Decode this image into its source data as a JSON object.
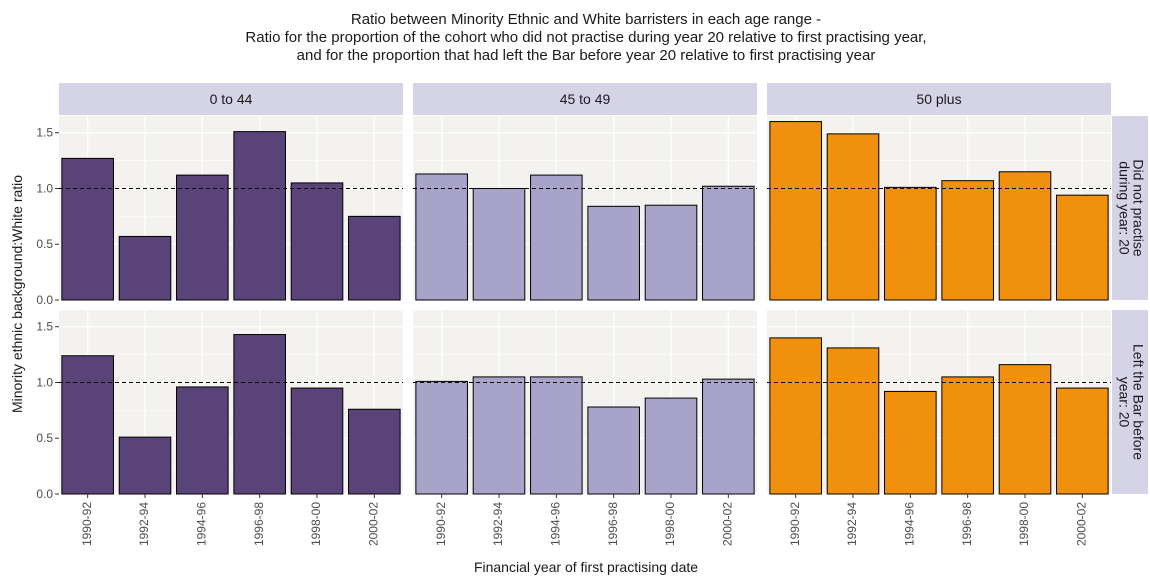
{
  "chart_data": {
    "type": "bar",
    "title_lines": [
      "Ratio between Minority Ethnic and White barristers in each age range -",
      "Ratio for the proportion of the cohort who did not practise during year 20 relative to first practising year,",
      "and for the proportion that had left the Bar before year 20 relative to first practising year"
    ],
    "xlabel": "Financial year of first practising date",
    "ylabel": "Minority ethnic background:White ratio",
    "categories": [
      "1990-92",
      "1992-94",
      "1994-96",
      "1996-98",
      "1998-00",
      "2000-02"
    ],
    "y_ticks": [
      "0.0",
      "0.5",
      "1.0",
      "1.5"
    ],
    "ylim": [
      0,
      1.65
    ],
    "reference_line": 1.0,
    "grid": true,
    "column_facets": [
      {
        "label": "0 to 44",
        "color": "#5a4378"
      },
      {
        "label": "45 to 49",
        "color": "#a7a3c9"
      },
      {
        "label": "50 plus",
        "color": "#f0900d"
      }
    ],
    "row_facets": [
      {
        "label_lines": [
          "Did not practise",
          "during year: 20"
        ]
      },
      {
        "label_lines": [
          "Left the Bar before",
          "year: 20"
        ]
      }
    ],
    "panels": [
      {
        "row": 0,
        "col": 0,
        "values": [
          1.27,
          0.57,
          1.12,
          1.51,
          1.05,
          0.75
        ]
      },
      {
        "row": 0,
        "col": 1,
        "values": [
          1.13,
          1.0,
          1.12,
          0.84,
          0.85,
          1.02
        ]
      },
      {
        "row": 0,
        "col": 2,
        "values": [
          1.6,
          1.49,
          1.01,
          1.07,
          1.15,
          0.94
        ]
      },
      {
        "row": 1,
        "col": 0,
        "values": [
          1.24,
          0.51,
          0.96,
          1.43,
          0.95,
          0.76
        ]
      },
      {
        "row": 1,
        "col": 1,
        "values": [
          1.01,
          1.05,
          1.05,
          0.78,
          0.86,
          1.03
        ]
      },
      {
        "row": 1,
        "col": 2,
        "values": [
          1.4,
          1.31,
          0.92,
          1.05,
          1.16,
          0.95
        ]
      }
    ]
  }
}
